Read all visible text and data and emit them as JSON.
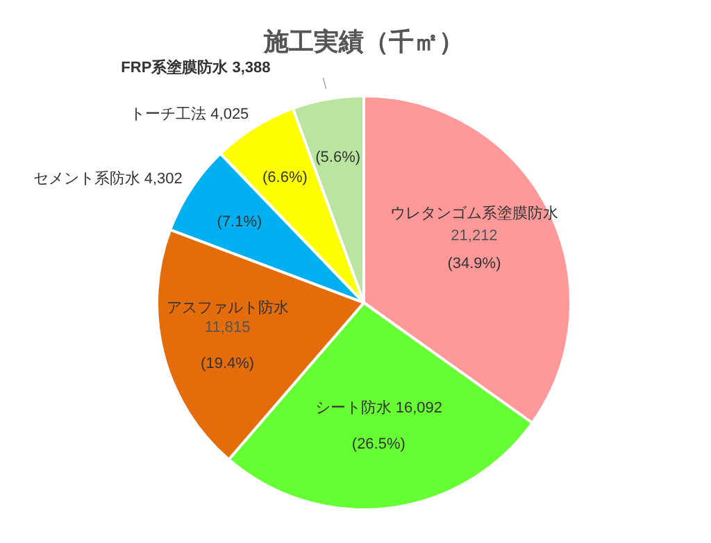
{
  "chart_data": {
    "type": "pie",
    "title": "施工実績（千㎡）",
    "categories": [
      "ウレタンゴム系塗膜防水",
      "シート防水",
      "アスファルト防水",
      "セメント系防水",
      "トーチ工法",
      "FRP系塗膜防水"
    ],
    "values": [
      21212,
      16092,
      11815,
      4302,
      4025,
      3388
    ],
    "colors": [
      "#ff9999",
      "#66ff33",
      "#e46c0a",
      "#00b0f0",
      "#ffff00",
      "#b9e5a0"
    ],
    "value_labels": [
      "21,212",
      "16,092",
      "11,815",
      "4,302",
      "4,025",
      "3,388"
    ],
    "annotations": [
      "(34.9%)",
      "(26.5%)",
      "(19.4%)",
      "(7.1%)",
      "(6.6%)",
      "(5.6%)"
    ]
  }
}
